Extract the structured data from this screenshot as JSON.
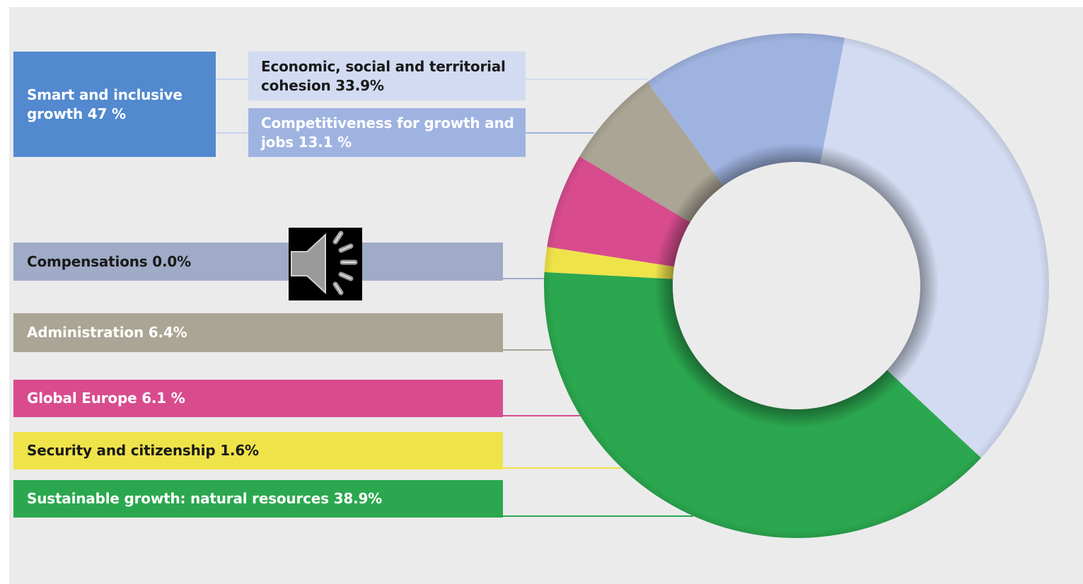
{
  "chart_data": {
    "type": "pie",
    "donut": true,
    "start_angle_deg": 79,
    "slices": [
      {
        "key": "cohesion",
        "label": "Economic, social and territorial cohesion 33.9%",
        "value": 33.9,
        "color": "#d2dbf1",
        "text_color": "#1a1a1a"
      },
      {
        "key": "sustainable",
        "label": "Sustainable growth: natural resources 38.9%",
        "value": 38.9,
        "color": "#2ba84f",
        "text_color": "#ffffff"
      },
      {
        "key": "security",
        "label": "Security and citizenship 1.6%",
        "value": 1.6,
        "color": "#efe34a",
        "text_color": "#1a1a1a"
      },
      {
        "key": "global",
        "label": "Global Europe 6.1 %",
        "value": 6.1,
        "color": "#d84c8e",
        "text_color": "#ffffff"
      },
      {
        "key": "administration",
        "label": "Administration 6.4%",
        "value": 6.4,
        "color": "#aba595",
        "text_color": "#ffffff"
      },
      {
        "key": "compensations",
        "label": "Compensations 0.0%",
        "value": 0.0,
        "color": "#9fabc7",
        "text_color": "#1a1a1a"
      },
      {
        "key": "competitiveness",
        "label": "Competitiveness for growth and jobs 13.1 %",
        "value": 13.1,
        "color": "#9fb3e1",
        "text_color": "#ffffff"
      }
    ],
    "groups": [
      {
        "key": "smart",
        "label": "Smart and inclusive growth 47 %",
        "value": 47,
        "members": [
          "cohesion",
          "competitiveness"
        ],
        "color": "#5289cf",
        "text_color": "#ffffff"
      }
    ]
  },
  "icons": {
    "speaker": "speaker-volume-icon"
  }
}
